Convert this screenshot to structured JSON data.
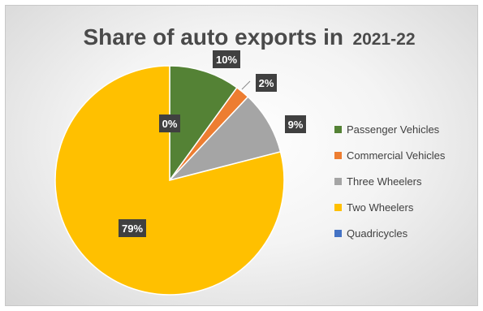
{
  "chart_data": {
    "type": "pie",
    "title": "Share of auto exports in 2021-22",
    "title_parts": [
      "Share of auto exports in",
      "2021-22"
    ],
    "categories": [
      "Passenger Vehicles",
      "Commercial Vehicles",
      "Three Wheelers",
      "Two Wheelers",
      "Quadricycles"
    ],
    "values": [
      10,
      2,
      9,
      79,
      0
    ],
    "data_labels": [
      "10%",
      "2%",
      "9%",
      "79%",
      "0%"
    ],
    "colors": [
      "#548235",
      "#ed7d31",
      "#a5a5a5",
      "#ffc000",
      "#4472c4"
    ],
    "label_color": "#404040",
    "legend_position": "right",
    "start_angle": "12 o'clock, clockwise"
  }
}
